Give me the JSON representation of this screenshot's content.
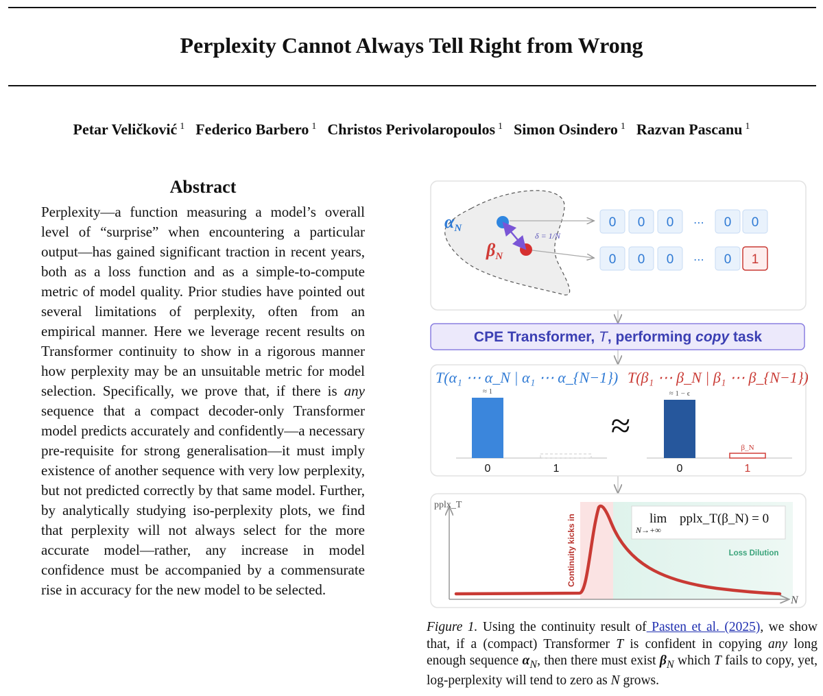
{
  "paper": {
    "title": "Perplexity Cannot Always Tell Right from Wrong",
    "authors": [
      {
        "name": "Petar Veličković",
        "affil": "1"
      },
      {
        "name": "Federico Barbero",
        "affil": "1"
      },
      {
        "name": "Christos Perivolaropoulos",
        "affil": "1"
      },
      {
        "name": "Simon Osindero",
        "affil": "1"
      },
      {
        "name": "Razvan Pascanu",
        "affil": "1"
      }
    ],
    "abstract_heading": "Abstract",
    "abstract": {
      "p1": "Perplexity—a function measuring a model’s overall level of “surprise” when encountering a particular output—has gained significant traction in recent years, both as a loss function and as a simple-to-compute metric of model quality. Prior studies have pointed out several limitations of perplexity, often from an empirical manner. Here we leverage recent results on Transformer continuity to show in a rigorous manner how perplexity may be an unsuitable metric for model selection. Specifically, we prove that, if there is ",
      "em": "any",
      "p2": " sequence that a compact decoder-only Transformer model predicts accurately and confidently—a necessary pre-requisite for strong generalisation—it must imply existence of another sequence with very low perplexity, but not predicted correctly by that same model. Further, by analytically studying iso-perplexity plots, we find that perplexity will not always select for the more accurate model—rather, any increase in model confidence must be accompanied by a commensurate rise in accuracy for the new model to be selected."
    }
  },
  "figure": {
    "top_panel": {
      "alpha_label": "α",
      "beta_label": "β",
      "sub_n": "N",
      "delta_label": "δ = 1/N",
      "alpha_tokens": [
        "0",
        "0",
        "0",
        "⋯",
        "0",
        "0"
      ],
      "beta_tokens": [
        "0",
        "0",
        "0",
        "⋯",
        "0",
        "1"
      ]
    },
    "transformer_label": {
      "pre": "CPE Transformer, ",
      "var": "T",
      "mid": ", performing ",
      "em": "copy",
      "post": " task"
    },
    "middle_panel": {
      "left_expr": "T(α₁ ⋯ α_N | α₁ ⋯ α_{N−1})",
      "right_expr": "T(β₁ ⋯ β_N | β₁ ⋯ β_{N−1})",
      "left_top_label": "≈ 1",
      "right_top_label": "≈ 1 − ϵ",
      "small_bar_label": "β_N",
      "approx_symbol": "≈",
      "x_labels_left": [
        "0",
        "1"
      ],
      "x_labels_right": [
        "0",
        "1"
      ],
      "left_colors": [
        "#3b86dc",
        "#cccccc"
      ],
      "right_colors": [
        "#26579c",
        "#d13b36"
      ]
    },
    "bottom_panel": {
      "y_label": "pplx_T",
      "x_label": "N",
      "continuity_label": "Continuity kicks in",
      "dilution_label": "Loss Dilution",
      "limit_lim": "lim",
      "limit_sub": "N→+∞",
      "limit_expr": "pplx_T(β_N) = 0",
      "curve_color": "#c93a34"
    }
  },
  "caption": {
    "label": "Figure 1.",
    "t1": " Using the continuity result of",
    "link": " Pasten et al. (2025)",
    "t2": ", we show that, if a (compact) Transformer ",
    "T1": "T",
    "t3": " is confident in copying ",
    "any": "any",
    "t4": " long enough sequence ",
    "alpha": "α",
    "t5": ", then there must exist ",
    "beta": "β",
    "t6": " which ",
    "T2": "T",
    "t7": " fails to copy, yet, log-perplexity will tend to zero as ",
    "N": "N",
    "t8": " grows."
  }
}
